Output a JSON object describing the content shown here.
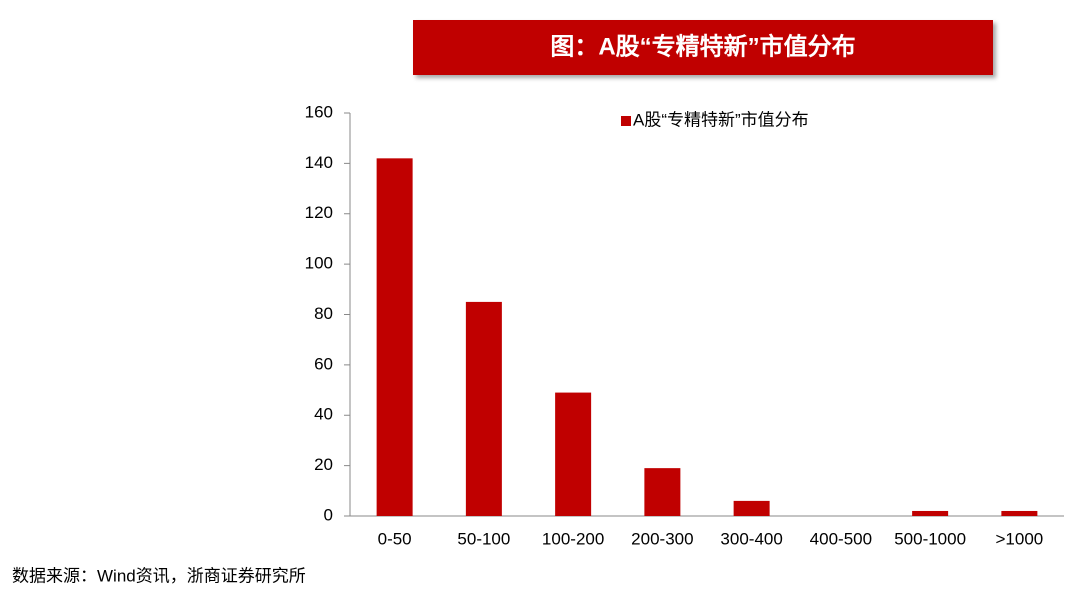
{
  "chart_data": {
    "type": "bar",
    "title": "图：A股“专精特新”市值分布",
    "categories": [
      "0-50",
      "50-100",
      "100-200",
      "200-300",
      "300-400",
      "400-500",
      "500-1000",
      ">1000"
    ],
    "series": [
      {
        "name": "A股“专精特新”市值分布",
        "color": "#c00000",
        "values": [
          142,
          85,
          49,
          19,
          6,
          0,
          2,
          2
        ]
      }
    ],
    "ylim": [
      0,
      160
    ],
    "yticks": [
      0,
      20,
      40,
      60,
      80,
      100,
      120,
      140,
      160
    ],
    "grid": false,
    "legend": "top-right",
    "source": "数据来源：Wind资讯，浙商证券研究所"
  }
}
